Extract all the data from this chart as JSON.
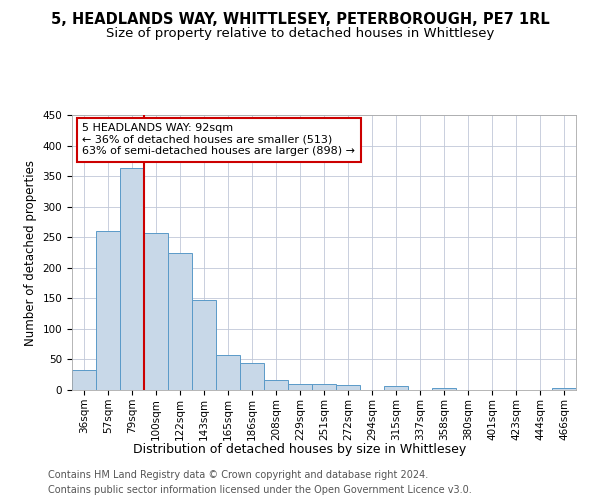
{
  "title1": "5, HEADLANDS WAY, WHITTLESEY, PETERBOROUGH, PE7 1RL",
  "title2": "Size of property relative to detached houses in Whittlesey",
  "xlabel": "Distribution of detached houses by size in Whittlesey",
  "ylabel": "Number of detached properties",
  "bar_labels": [
    "36sqm",
    "57sqm",
    "79sqm",
    "100sqm",
    "122sqm",
    "143sqm",
    "165sqm",
    "186sqm",
    "208sqm",
    "229sqm",
    "251sqm",
    "272sqm",
    "294sqm",
    "315sqm",
    "337sqm",
    "358sqm",
    "380sqm",
    "401sqm",
    "423sqm",
    "444sqm",
    "466sqm"
  ],
  "bar_values": [
    32,
    260,
    363,
    257,
    224,
    148,
    57,
    44,
    17,
    10,
    10,
    8,
    0,
    6,
    0,
    3,
    0,
    0,
    0,
    0,
    3
  ],
  "bar_color": "#c8d8e8",
  "bar_edge_color": "#5a9ac8",
  "vline_x": 2.5,
  "vline_color": "#cc0000",
  "annotation_line1": "5 HEADLANDS WAY: 92sqm",
  "annotation_line2": "← 36% of detached houses are smaller (513)",
  "annotation_line3": "63% of semi-detached houses are larger (898) →",
  "annotation_box_color": "#ffffff",
  "annotation_box_edge": "#cc0000",
  "ylim": [
    0,
    450
  ],
  "yticks": [
    0,
    50,
    100,
    150,
    200,
    250,
    300,
    350,
    400,
    450
  ],
  "footer1": "Contains HM Land Registry data © Crown copyright and database right 2024.",
  "footer2": "Contains public sector information licensed under the Open Government Licence v3.0.",
  "bg_color": "#ffffff",
  "grid_color": "#c0c8d8",
  "title1_fontsize": 10.5,
  "title2_fontsize": 9.5,
  "xlabel_fontsize": 9,
  "ylabel_fontsize": 8.5,
  "tick_fontsize": 7.5,
  "annotation_fontsize": 8,
  "footer_fontsize": 7
}
